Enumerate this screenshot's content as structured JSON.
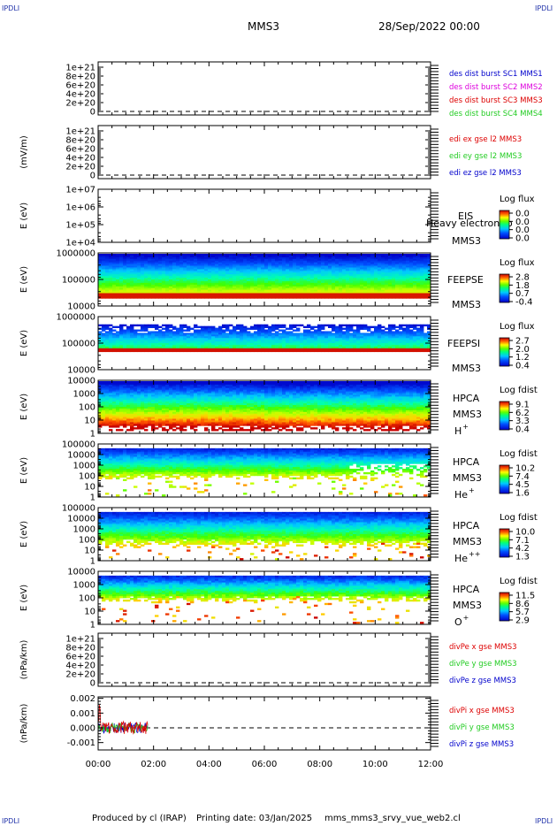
{
  "header": {
    "corner_label": "IPDLI",
    "spacecraft": "MMS3",
    "date": "28/Sep/2022 00:00"
  },
  "footer": {
    "produced_by": "Produced by cl (IRAP)",
    "printing_date": "Printing date: 03/Jan/2025",
    "script_name": "mms_mms3_srvy_vue_web2.cl"
  },
  "colors": {
    "red": "#dd0000",
    "magenta": "#dd00dd",
    "green": "#22cc22",
    "blue": "#0000cc",
    "spectrogram_colormap": [
      "#ffffff",
      "#0000ff",
      "#00ffff",
      "#00ff00",
      "#ffff00",
      "#ff8000",
      "#ff0000",
      "#990000"
    ]
  },
  "chart_data": {
    "type": "multi-panel spectrogram and line plots",
    "x_tick_labels": [
      "00:00",
      "02:00",
      "04:00",
      "06:00",
      "08:00",
      "10:00",
      "12:00"
    ],
    "panels": [
      {
        "id": "p1",
        "type": "line",
        "ylabel": "",
        "y_ticks": [
          "1e+21",
          "8e+20",
          "6e+20",
          "4e+20",
          "2e+20",
          "0"
        ],
        "zero_line": true,
        "legend": [
          {
            "text": "des dist burst SC1 MMS1",
            "color": "#0000cc"
          },
          {
            "text": "des dist burst SC2 MMS2",
            "color": "#dd00dd"
          },
          {
            "text": "des dist burst SC3 MMS3",
            "color": "#dd0000"
          },
          {
            "text": "des dist burst SC4 MMS4",
            "color": "#22cc22"
          }
        ]
      },
      {
        "id": "p2",
        "type": "line",
        "ylabel": "(mV/m)",
        "y_ticks": [
          "1e+21",
          "8e+20",
          "6e+20",
          "4e+20",
          "2e+20",
          "0"
        ],
        "zero_line": true,
        "legend": [
          {
            "text": "edi ex gse l2 MMS3",
            "color": "#dd0000"
          },
          {
            "text": "edi ey gse l2 MMS3",
            "color": "#22cc22"
          },
          {
            "text": "edi ez gse l2 MMS3",
            "color": "#0000cc"
          }
        ]
      },
      {
        "id": "p3",
        "type": "spectrogram",
        "ylabel": "E (eV)",
        "y_ticks": [
          "1e+07",
          "1e+06",
          "1e+05",
          "1e+04"
        ],
        "instrument": "EIS",
        "spacecraft": "MMS3",
        "overlay_text": "Heavy electron to",
        "colorbar_title": "Log flux",
        "colorbar_labels": [
          "0.0",
          "0.0",
          "0.0",
          "0.0"
        ],
        "data": "none"
      },
      {
        "id": "p4",
        "type": "spectrogram",
        "ylabel": "E (eV)",
        "y_ticks": [
          "1000000",
          "100000",
          "10000"
        ],
        "instrument": "FEEPSE",
        "spacecraft": "MMS3",
        "colorbar_title": "Log flux",
        "colorbar_labels": [
          "2.8",
          "1.8",
          "0.7",
          "-0.4"
        ]
      },
      {
        "id": "p5",
        "type": "spectrogram",
        "ylabel": "E (eV)",
        "y_ticks": [
          "1000000",
          "100000",
          "10000"
        ],
        "instrument": "FEEPSI",
        "spacecraft": "MMS3",
        "colorbar_title": "Log flux",
        "colorbar_labels": [
          "2.7",
          "2.0",
          "1.2",
          "0.4"
        ]
      },
      {
        "id": "p6",
        "type": "spectrogram",
        "ylabel": "E (eV)",
        "y_ticks": [
          "10000",
          "1000",
          "100",
          "10",
          "1"
        ],
        "instrument": "HPCA",
        "spacecraft": "MMS3",
        "species": "H",
        "species_charge": "+",
        "colorbar_title": "Log fdist",
        "colorbar_labels": [
          "9.1",
          "6.2",
          "3.3",
          "0.4"
        ]
      },
      {
        "id": "p7",
        "type": "spectrogram",
        "ylabel": "E (eV)",
        "y_ticks": [
          "100000",
          "10000",
          "1000",
          "100",
          "10",
          "1"
        ],
        "instrument": "HPCA",
        "spacecraft": "MMS3",
        "species": "He",
        "species_charge": "+",
        "colorbar_title": "Log fdist",
        "colorbar_labels": [
          "10.2",
          "7.4",
          "4.5",
          "1.6"
        ]
      },
      {
        "id": "p8",
        "type": "spectrogram",
        "ylabel": "E (eV)",
        "y_ticks": [
          "100000",
          "10000",
          "1000",
          "100",
          "10",
          "1"
        ],
        "instrument": "HPCA",
        "spacecraft": "MMS3",
        "species": "He",
        "species_charge": "++",
        "colorbar_title": "Log fdist",
        "colorbar_labels": [
          "10.0",
          "7.1",
          "4.2",
          "1.3"
        ]
      },
      {
        "id": "p9",
        "type": "spectrogram",
        "ylabel": "E (eV)",
        "y_ticks": [
          "10000",
          "1000",
          "100",
          "10",
          "1"
        ],
        "instrument": "HPCA",
        "spacecraft": "MMS3",
        "species": "O",
        "species_charge": "+",
        "colorbar_title": "Log fdist",
        "colorbar_labels": [
          "11.5",
          "8.6",
          "5.7",
          "2.9"
        ]
      },
      {
        "id": "p10",
        "type": "line",
        "ylabel": "(nPa/km)",
        "y_ticks": [
          "1e+21",
          "8e+20",
          "6e+20",
          "4e+20",
          "2e+20",
          "0"
        ],
        "zero_line": true,
        "legend": [
          {
            "text": "divPe x gse MMS3",
            "color": "#dd0000"
          },
          {
            "text": "divPe y gse MMS3",
            "color": "#22cc22"
          },
          {
            "text": "divPe z gse MMS3",
            "color": "#0000cc"
          }
        ]
      },
      {
        "id": "p11",
        "type": "line",
        "ylabel": "(nPa/km)",
        "y_ticks": [
          "0.002",
          "0.001",
          "0.000",
          "-0.001"
        ],
        "y_tick_values": [
          0.002,
          0.001,
          0.0,
          -0.001
        ],
        "ylim": [
          -0.0015,
          0.0021
        ],
        "zero_line": true,
        "data_time_range_hours": [
          0.0,
          1.8
        ],
        "legend": [
          {
            "text": "divPi x gse MMS3",
            "color": "#dd0000"
          },
          {
            "text": "divPi y gse MMS3",
            "color": "#22cc22"
          },
          {
            "text": "divPi z gse MMS3",
            "color": "#0000cc"
          }
        ]
      }
    ]
  }
}
